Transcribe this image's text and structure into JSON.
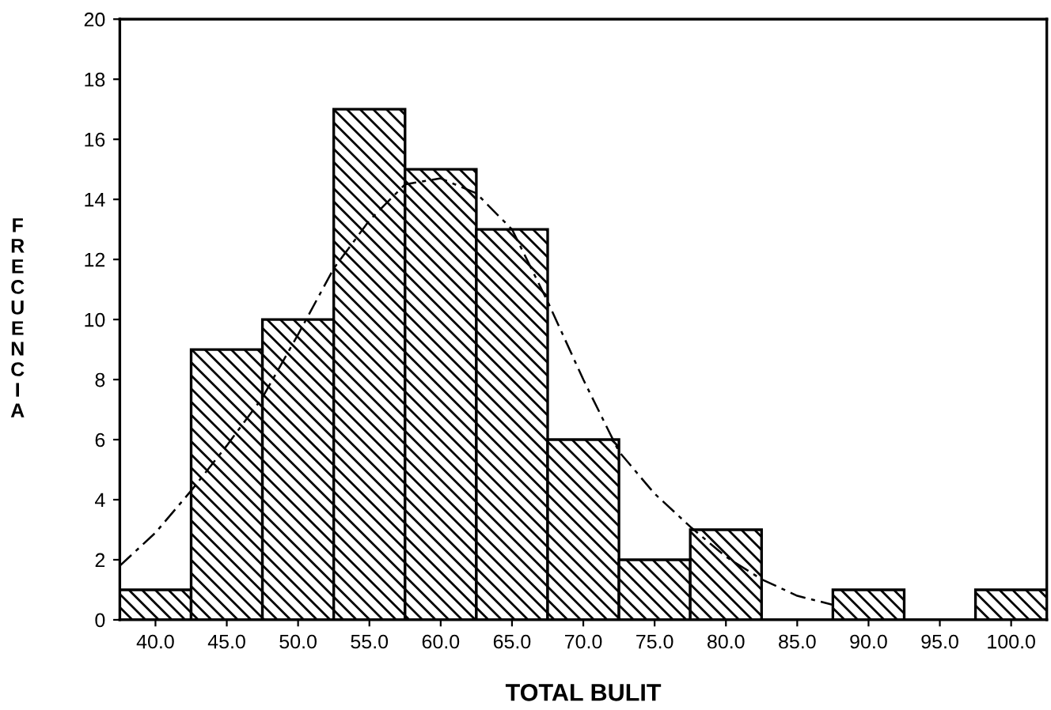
{
  "chart_data": {
    "type": "histogram",
    "xlabel": "TOTAL BULIT",
    "ylabel": "FRECUENCIA",
    "bins": [
      37.5,
      42.5,
      47.5,
      52.5,
      57.5,
      62.5,
      67.5,
      72.5,
      77.5,
      82.5,
      87.5,
      92.5,
      97.5,
      102.5
    ],
    "values": [
      1,
      9,
      10,
      17,
      15,
      13,
      6,
      2,
      3,
      0,
      1,
      0,
      1
    ],
    "color": "#000000",
    "series": [
      {
        "type": "line",
        "color": "#000000",
        "line_style": "dashed",
        "x": [
          37.5,
          40,
          42.5,
          45,
          47.5,
          50,
          52.5,
          55,
          57.5,
          60,
          62.5,
          65,
          67.5,
          70,
          72.5,
          75,
          77.5,
          80,
          82.5,
          85,
          87.5
        ],
        "values": [
          1.8,
          2.9,
          4.3,
          5.8,
          7.4,
          9.5,
          11.7,
          13.3,
          14.5,
          14.7,
          14.2,
          13.0,
          10.6,
          8.0,
          5.6,
          4.2,
          3.1,
          2.1,
          1.35,
          0.8,
          0.5
        ]
      }
    ],
    "xlim": [
      37.5,
      102.5
    ],
    "xticks": [
      {
        "value": 40,
        "label": "40.0"
      },
      {
        "value": 45,
        "label": "45.0"
      },
      {
        "value": 50,
        "label": "50.0"
      },
      {
        "value": 55,
        "label": "55.0"
      },
      {
        "value": 60,
        "label": "60.0"
      },
      {
        "value": 65,
        "label": "65.0"
      },
      {
        "value": 70,
        "label": "70.0"
      },
      {
        "value": 75,
        "label": "75.0"
      },
      {
        "value": 80,
        "label": "80.0"
      },
      {
        "value": 85,
        "label": "85.0"
      },
      {
        "value": 90,
        "label": "90.0"
      },
      {
        "value": 95,
        "label": "95.0"
      },
      {
        "value": 100,
        "label": "100.0"
      }
    ],
    "ylim": [
      0,
      20
    ],
    "yticks": [
      0,
      2,
      4,
      6,
      8,
      10,
      12,
      14,
      16,
      18,
      20
    ],
    "grid": false,
    "legend": false
  }
}
